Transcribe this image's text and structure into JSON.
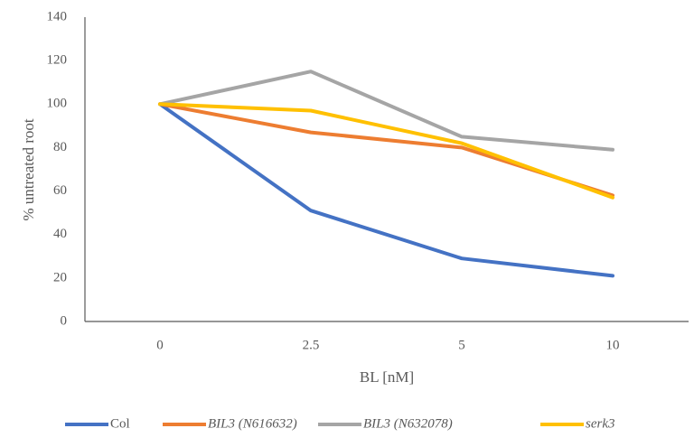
{
  "chart_data": {
    "type": "line",
    "title": "",
    "xlabel": "BL  [nM]",
    "ylabel": "% untreated  root",
    "categories": [
      "0",
      "2.5",
      "5",
      "10"
    ],
    "ylim": [
      0,
      140
    ],
    "y_ticks": [
      "0",
      "20",
      "40",
      "60",
      "80",
      "100",
      "120",
      "140"
    ],
    "grid": false,
    "legend_position": "bottom",
    "series": [
      {
        "name": "Col",
        "color": "#4472C4",
        "italic": false,
        "values": [
          100,
          51,
          29,
          21
        ]
      },
      {
        "name": "BIL3 (N616632)",
        "color": "#ED7D31",
        "italic": true,
        "values": [
          100,
          87,
          80,
          58
        ]
      },
      {
        "name": "BIL3 (N632078)",
        "color": "#A5A5A5",
        "italic": true,
        "values": [
          100,
          115,
          85,
          79
        ]
      },
      {
        "name": "serk3",
        "color": "#FFC000",
        "italic": true,
        "values": [
          100,
          97,
          82,
          57
        ]
      }
    ]
  }
}
